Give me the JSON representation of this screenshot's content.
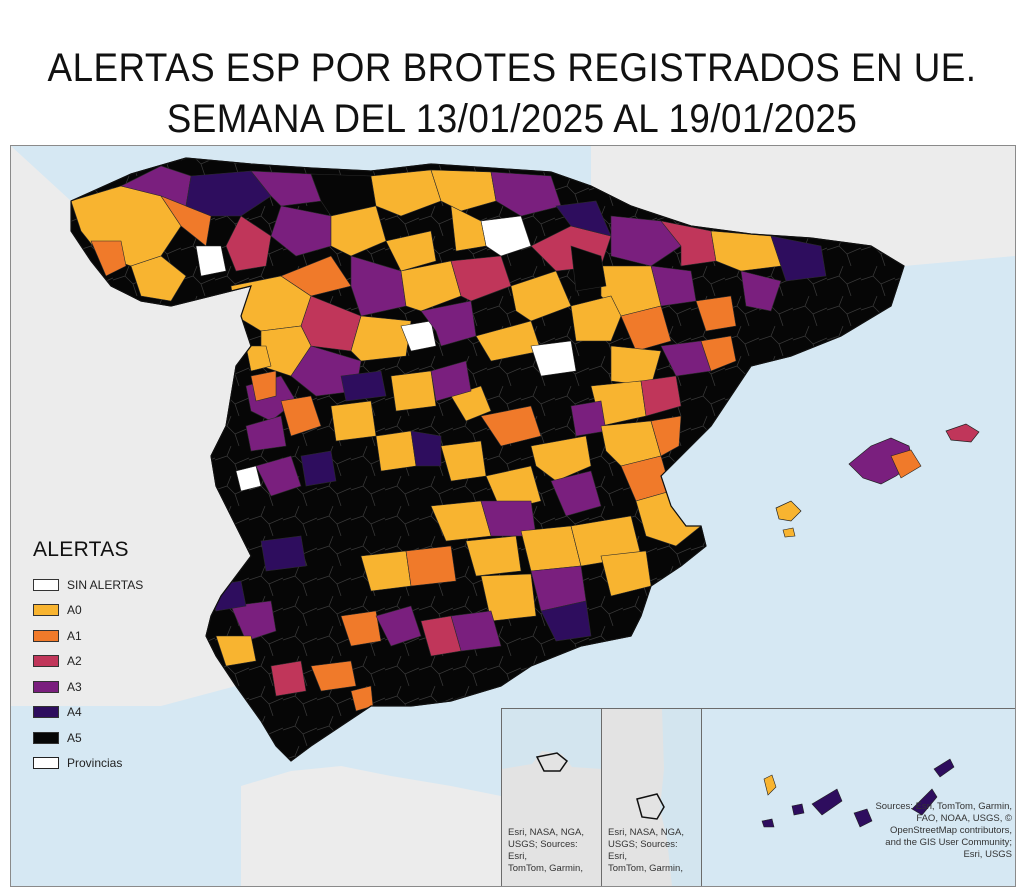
{
  "title": {
    "line1": "ALERTAS ESP POR BROTES REGISTRADOS EN UE.",
    "line2": "SEMANA DEL 13/01/2025 AL 19/01/2025"
  },
  "legend": {
    "title": "ALERTAS",
    "items": [
      {
        "label": "SIN ALERTAS",
        "color": "#ffffff"
      },
      {
        "label": "A0",
        "color": "#f8b430"
      },
      {
        "label": "A1",
        "color": "#f07a2a"
      },
      {
        "label": "A2",
        "color": "#c0365a"
      },
      {
        "label": "A3",
        "color": "#7a1f7e"
      },
      {
        "label": "A4",
        "color": "#2e0d5e"
      },
      {
        "label": "A5",
        "color": "#060606"
      },
      {
        "label": "Provincias",
        "color": "#ffffff"
      }
    ]
  },
  "attributions": {
    "inset_ceuta": [
      "Esri, NASA, NGA,",
      "USGS; Sources: Esri,",
      "TomTom, Garmin,"
    ],
    "inset_melilla": [
      "Esri, NASA, NGA,",
      "USGS; Sources: Esri,",
      "TomTom, Garmin,"
    ],
    "inset_canarias": [
      "Sources: Esri, TomTom, Garmin,",
      "FAO, NOAA, USGS, ©",
      "OpenStreetMap contributors,",
      "and the GIS User Community;",
      "Esri, USGS"
    ]
  },
  "colors": {
    "sea": "#d6e8f3",
    "land_outside": "#ececec",
    "sin_alertas": "#ffffff",
    "a0": "#f8b430",
    "a1": "#f07a2a",
    "a2": "#c0365a",
    "a3": "#7a1f7e",
    "a4": "#2e0d5e",
    "a5": "#060606"
  }
}
